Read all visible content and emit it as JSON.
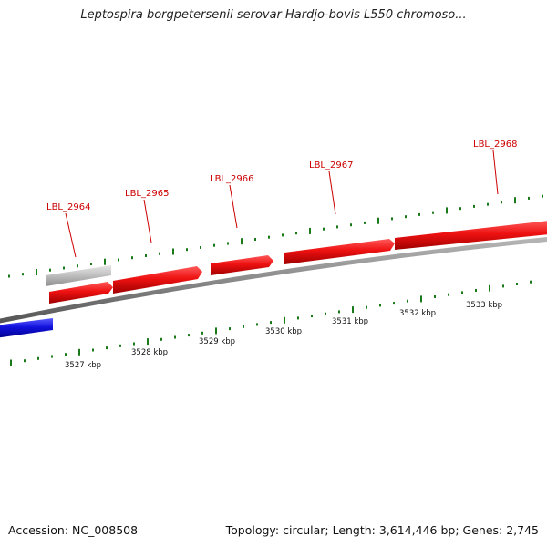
{
  "title": "Leptospira borgpetersenii serovar Hardjo-bovis L550 chromoso...",
  "footer": {
    "accession": "Accession: NC_008508",
    "summary": "Topology: circular; Length: 3,614,446 bp; Genes: 2,745"
  },
  "gene_labels": [
    "LBL_2964",
    "LBL_2965",
    "LBL_2966",
    "LBL_2967",
    "LBL_2968"
  ],
  "scale_labels": [
    "3527 kbp",
    "3528 kbp",
    "3529 kbp",
    "3530 kbp",
    "3531 kbp",
    "3532 kbp",
    "3533 kbp"
  ],
  "colors": {
    "forward_gene": "#ee1111",
    "reverse_gene": "#1111dd",
    "other_feature": "#bbbbbb",
    "backbone": "#888888",
    "tick": "#1a7a1a",
    "label": "#cc0000"
  }
}
